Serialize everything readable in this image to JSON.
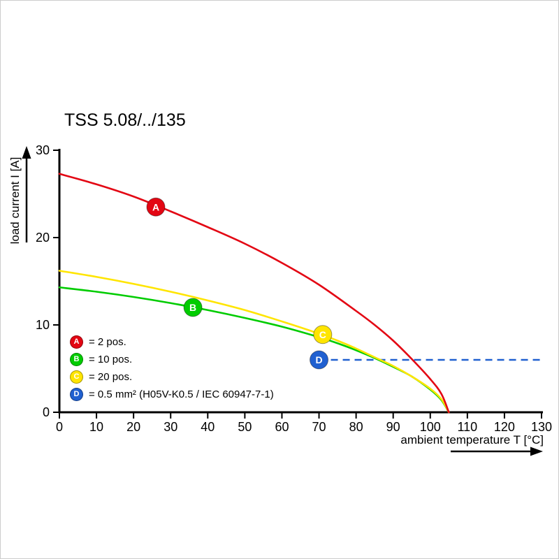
{
  "title": "TSS 5.08/../135",
  "axes": {
    "x_label": "ambient temperature T [°C]",
    "y_label": "load current I [A]"
  },
  "chart_data": {
    "type": "line",
    "title": "TSS 5.08/../135",
    "xlabel": "ambient temperature T [°C]",
    "ylabel": "load current I [A]",
    "xlim": [
      0,
      130
    ],
    "ylim": [
      0,
      30
    ],
    "x_ticks": [
      0,
      10,
      20,
      30,
      40,
      50,
      60,
      70,
      80,
      90,
      100,
      110,
      120,
      130
    ],
    "y_ticks": [
      0,
      10,
      20,
      30
    ],
    "grid": false,
    "legend_position": "inside bottom-left",
    "series": [
      {
        "name": "A",
        "label": "2 pos.",
        "color": "#e30613",
        "style": "solid",
        "points": [
          [
            0,
            27.3
          ],
          [
            10,
            26.1
          ],
          [
            20,
            24.7
          ],
          [
            30,
            23.0
          ],
          [
            40,
            21.2
          ],
          [
            50,
            19.3
          ],
          [
            60,
            17.1
          ],
          [
            70,
            14.6
          ],
          [
            80,
            11.6
          ],
          [
            85,
            10.0
          ],
          [
            90,
            8.2
          ],
          [
            95,
            6.1
          ],
          [
            100,
            3.8
          ],
          [
            103,
            2.1
          ],
          [
            105,
            0
          ]
        ]
      },
      {
        "name": "C",
        "label": "20 pos.",
        "color": "#ffe500",
        "style": "solid",
        "points": [
          [
            0,
            16.2
          ],
          [
            10,
            15.5
          ],
          [
            20,
            14.7
          ],
          [
            30,
            13.8
          ],
          [
            40,
            12.8
          ],
          [
            50,
            11.7
          ],
          [
            60,
            10.4
          ],
          [
            70,
            9.0
          ],
          [
            75,
            8.2
          ],
          [
            80,
            7.3
          ],
          [
            85,
            6.3
          ],
          [
            90,
            5.3
          ],
          [
            95,
            4.1
          ],
          [
            100,
            2.7
          ],
          [
            103,
            1.5
          ],
          [
            105,
            0
          ]
        ]
      },
      {
        "name": "B",
        "label": "10 pos.",
        "color": "#00cc00",
        "style": "solid",
        "points": [
          [
            0,
            14.3
          ],
          [
            10,
            13.8
          ],
          [
            20,
            13.2
          ],
          [
            30,
            12.5
          ],
          [
            40,
            11.7
          ],
          [
            50,
            10.8
          ],
          [
            60,
            9.8
          ],
          [
            70,
            8.6
          ],
          [
            75,
            7.9
          ],
          [
            80,
            7.1
          ],
          [
            85,
            6.2
          ],
          [
            90,
            5.2
          ],
          [
            95,
            4.1
          ],
          [
            100,
            2.6
          ],
          [
            103,
            1.4
          ],
          [
            105,
            0
          ]
        ]
      },
      {
        "name": "D",
        "label": "0.5 mm² (H05V-K0.5 / IEC 60947-7-1)",
        "color": "#2060d0",
        "style": "dashed",
        "points": [
          [
            70,
            6
          ],
          [
            130,
            6
          ]
        ]
      }
    ],
    "markers": [
      {
        "series": "A",
        "letter": "A",
        "x": 26,
        "y": 23.5,
        "color": "#e30613"
      },
      {
        "series": "B",
        "letter": "B",
        "x": 36,
        "y": 12.0,
        "color": "#00cc00"
      },
      {
        "series": "C",
        "letter": "C",
        "x": 71,
        "y": 8.9,
        "color": "#ffe500"
      },
      {
        "series": "D",
        "letter": "D",
        "x": 70,
        "y": 6.0,
        "color": "#2060d0"
      }
    ]
  },
  "legend": {
    "items": [
      {
        "key": "A",
        "color": "#e30613",
        "text": "= 2 pos."
      },
      {
        "key": "B",
        "color": "#00cc00",
        "text": "= 10 pos."
      },
      {
        "key": "C",
        "color": "#ffe500",
        "text": "= 20 pos."
      },
      {
        "key": "D",
        "color": "#2060d0",
        "text": "= 0.5 mm² (H05V-K0.5 / IEC 60947-7-1)"
      }
    ]
  }
}
